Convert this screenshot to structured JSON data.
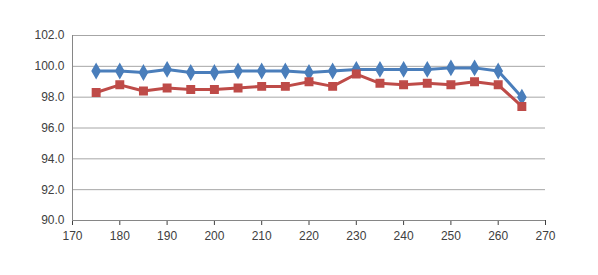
{
  "chart_data": {
    "type": "line",
    "x": [
      175,
      180,
      185,
      190,
      195,
      200,
      205,
      210,
      215,
      220,
      225,
      230,
      235,
      240,
      245,
      250,
      255,
      260,
      265
    ],
    "series": [
      {
        "name": null,
        "color": "#4a7ebb",
        "marker": "diamond",
        "values": [
          99.7,
          99.7,
          99.6,
          99.8,
          99.6,
          99.6,
          99.7,
          99.7,
          99.7,
          99.6,
          99.7,
          99.8,
          99.8,
          99.8,
          99.8,
          99.9,
          99.9,
          99.7,
          98.0
        ]
      },
      {
        "name": null,
        "color": "#be4b48",
        "marker": "square",
        "values": [
          98.3,
          98.8,
          98.4,
          98.6,
          98.5,
          98.5,
          98.6,
          98.7,
          98.7,
          99.0,
          98.7,
          99.5,
          98.9,
          98.8,
          98.9,
          98.8,
          99.0,
          98.8,
          97.4
        ]
      }
    ],
    "xlim": [
      170,
      270
    ],
    "xticks": [
      170,
      180,
      190,
      200,
      210,
      220,
      230,
      240,
      250,
      260,
      270
    ],
    "ylim": [
      90,
      102
    ],
    "yticks": [
      {
        "value": 90,
        "label": "90.0"
      },
      {
        "value": 92,
        "label": "92.0"
      },
      {
        "value": 94,
        "label": "94.0"
      },
      {
        "value": 96,
        "label": "96.0"
      },
      {
        "value": 98,
        "label": "98.0"
      },
      {
        "value": 100,
        "label": "100.0"
      },
      {
        "value": 102,
        "label": "102.0"
      }
    ],
    "grid": true
  }
}
